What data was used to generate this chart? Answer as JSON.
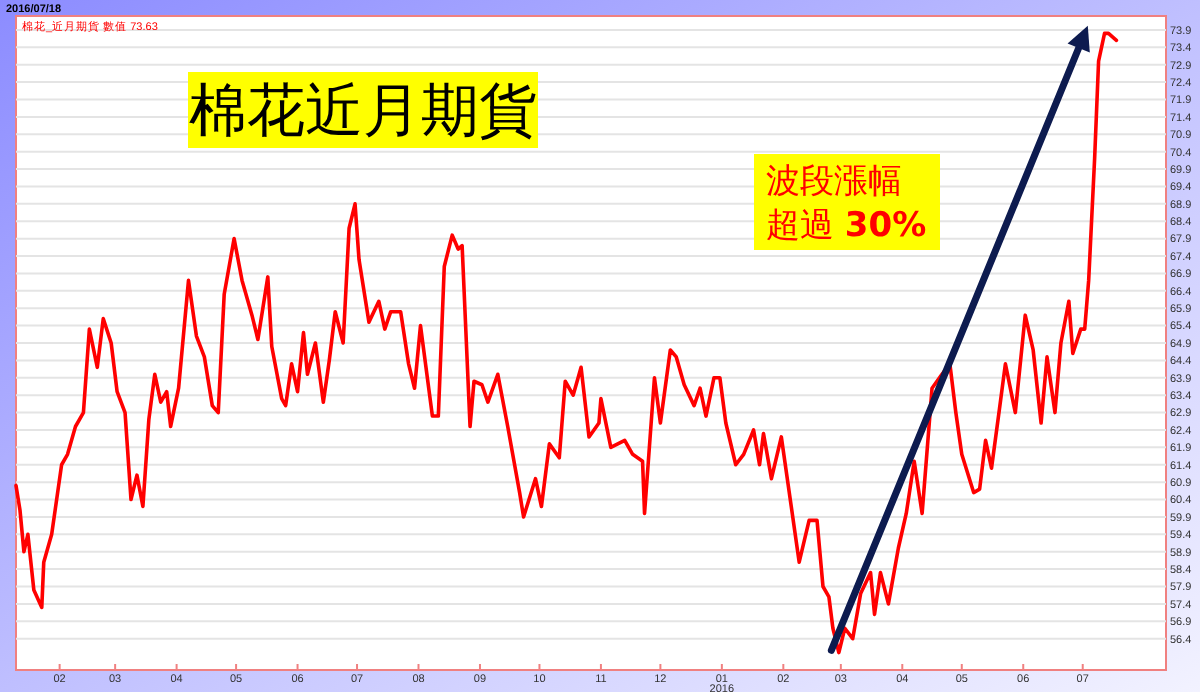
{
  "chart_data": {
    "type": "line",
    "title": "棉花近月期貨",
    "annotations": [
      "2016/07/18",
      "數值 73.63",
      "波段漲幅",
      "超過 30%",
      "2016"
    ],
    "xlim": [
      "2015-01-10",
      "2016-08-12"
    ],
    "xticks": [
      {
        "value": "2015-02-01",
        "label": "02"
      },
      {
        "value": "2015-03-01",
        "label": "03"
      },
      {
        "value": "2015-04-01",
        "label": "04"
      },
      {
        "value": "2015-05-01",
        "label": "05"
      },
      {
        "value": "2015-06-01",
        "label": "06"
      },
      {
        "value": "2015-07-01",
        "label": "07"
      },
      {
        "value": "2015-08-01",
        "label": "08"
      },
      {
        "value": "2015-09-01",
        "label": "09"
      },
      {
        "value": "2015-10-01",
        "label": "10"
      },
      {
        "value": "2015-11-01",
        "label": "11"
      },
      {
        "value": "2015-12-01",
        "label": "12"
      },
      {
        "value": "2016-01-01",
        "label": "01"
      },
      {
        "value": "2016-02-01",
        "label": "02"
      },
      {
        "value": "2016-03-01",
        "label": "03"
      },
      {
        "value": "2016-04-01",
        "label": "04"
      },
      {
        "value": "2016-05-01",
        "label": "05"
      },
      {
        "value": "2016-06-01",
        "label": "06"
      },
      {
        "value": "2016-07-01",
        "label": "07"
      }
    ],
    "ylim": [
      55.5,
      74.3
    ],
    "yticks": [
      56.4,
      56.9,
      57.4,
      57.9,
      58.4,
      58.9,
      59.4,
      59.9,
      60.4,
      60.9,
      61.4,
      61.9,
      62.4,
      62.9,
      63.4,
      63.9,
      64.4,
      64.9,
      65.4,
      65.9,
      66.4,
      66.9,
      67.4,
      67.9,
      68.4,
      68.9,
      69.4,
      69.9,
      70.4,
      70.9,
      71.4,
      71.9,
      72.4,
      72.9,
      73.4,
      73.9
    ],
    "grid": "y",
    "legend": "top left",
    "marker": "none",
    "line_style": "solid",
    "series": [
      {
        "name": "棉花_近月期貨",
        "color": "#ff0000",
        "x": [
          "2015-01-10",
          "2015-01-12",
          "2015-01-14",
          "2015-01-16",
          "2015-01-19",
          "2015-01-23",
          "2015-01-24",
          "2015-01-28",
          "2015-02-02",
          "2015-02-05",
          "2015-02-09",
          "2015-02-13",
          "2015-02-16",
          "2015-02-20",
          "2015-02-23",
          "2015-02-27",
          "2015-03-02",
          "2015-03-06",
          "2015-03-09",
          "2015-03-12",
          "2015-03-15",
          "2015-03-18",
          "2015-03-21",
          "2015-03-24",
          "2015-03-27",
          "2015-03-29",
          "2015-04-02",
          "2015-04-07",
          "2015-04-11",
          "2015-04-15",
          "2015-04-19",
          "2015-04-22",
          "2015-04-25",
          "2015-04-30",
          "2015-05-04",
          "2015-05-09",
          "2015-05-12",
          "2015-05-17",
          "2015-05-19",
          "2015-05-24",
          "2015-05-26",
          "2015-05-29",
          "2015-06-01",
          "2015-06-04",
          "2015-06-06",
          "2015-06-10",
          "2015-06-14",
          "2015-06-17",
          "2015-06-20",
          "2015-06-24",
          "2015-06-27",
          "2015-06-30",
          "2015-07-02",
          "2015-07-07",
          "2015-07-12",
          "2015-07-15",
          "2015-07-18",
          "2015-07-23",
          "2015-07-27",
          "2015-07-30",
          "2015-08-02",
          "2015-08-08",
          "2015-08-11",
          "2015-08-14",
          "2015-08-18",
          "2015-08-21",
          "2015-08-23",
          "2015-08-27",
          "2015-08-29",
          "2015-09-02",
          "2015-09-05",
          "2015-09-10",
          "2015-09-15",
          "2015-09-21",
          "2015-09-23",
          "2015-09-29",
          "2015-10-02",
          "2015-10-06",
          "2015-10-11",
          "2015-10-14",
          "2015-10-18",
          "2015-10-22",
          "2015-10-26",
          "2015-10-31",
          "2015-11-01",
          "2015-11-06",
          "2015-11-13",
          "2015-11-17",
          "2015-11-22",
          "2015-11-23",
          "2015-11-28",
          "2015-12-01",
          "2015-12-06",
          "2015-12-09",
          "2015-12-13",
          "2015-12-18",
          "2015-12-21",
          "2015-12-24",
          "2015-12-28",
          "2015-12-31",
          "2016-01-03",
          "2016-01-08",
          "2016-01-12",
          "2016-01-17",
          "2016-01-20",
          "2016-01-22",
          "2016-01-26",
          "2016-01-31",
          "2016-02-05",
          "2016-02-09",
          "2016-02-14",
          "2016-02-18",
          "2016-02-21",
          "2016-02-24",
          "2016-02-26",
          "2016-02-29",
          "2016-03-03",
          "2016-03-07",
          "2016-03-11",
          "2016-03-16",
          "2016-03-18",
          "2016-03-21",
          "2016-03-25",
          "2016-03-30",
          "2016-04-03",
          "2016-04-07",
          "2016-04-11",
          "2016-04-16",
          "2016-04-21",
          "2016-04-25",
          "2016-04-28",
          "2016-05-01",
          "2016-05-07",
          "2016-05-10",
          "2016-05-13",
          "2016-05-16",
          "2016-05-20",
          "2016-05-23",
          "2016-05-28",
          "2016-06-02",
          "2016-06-06",
          "2016-06-10",
          "2016-06-13",
          "2016-06-17",
          "2016-06-20",
          "2016-06-24",
          "2016-06-26",
          "2016-06-30",
          "2016-07-02",
          "2016-07-04",
          "2016-07-07",
          "2016-07-09",
          "2016-07-12",
          "2016-07-14",
          "2016-07-18"
        ],
        "values": [
          60.8,
          60.1,
          58.9,
          59.4,
          57.8,
          57.3,
          58.6,
          59.4,
          61.4,
          61.7,
          62.5,
          62.9,
          65.3,
          64.2,
          65.6,
          64.9,
          63.5,
          62.9,
          60.4,
          61.1,
          60.2,
          62.7,
          64.0,
          63.2,
          63.5,
          62.5,
          63.6,
          66.7,
          65.1,
          64.5,
          63.1,
          62.9,
          66.3,
          67.9,
          66.7,
          65.7,
          65.0,
          66.8,
          64.8,
          63.3,
          63.1,
          64.3,
          63.5,
          65.2,
          64.0,
          64.9,
          63.2,
          64.4,
          65.8,
          64.9,
          68.2,
          68.9,
          67.3,
          65.5,
          66.1,
          65.3,
          65.8,
          65.8,
          64.3,
          63.6,
          65.4,
          62.8,
          62.8,
          67.1,
          68.0,
          67.6,
          67.7,
          62.5,
          63.8,
          63.7,
          63.2,
          64.0,
          62.5,
          60.6,
          59.9,
          61.0,
          60.2,
          62.0,
          61.6,
          63.8,
          63.4,
          64.2,
          62.2,
          62.6,
          63.3,
          61.9,
          62.1,
          61.7,
          61.5,
          60.0,
          63.9,
          62.6,
          64.7,
          64.5,
          63.7,
          63.1,
          63.6,
          62.8,
          63.9,
          63.9,
          62.6,
          61.4,
          61.7,
          62.4,
          61.4,
          62.3,
          61.0,
          62.2,
          60.2,
          58.6,
          59.8,
          59.8,
          57.9,
          57.6,
          56.7,
          56.0,
          56.7,
          56.4,
          57.7,
          58.3,
          57.1,
          58.3,
          57.4,
          59.0,
          60.0,
          61.5,
          60.0,
          63.6,
          64.0,
          64.3,
          62.9,
          61.7,
          60.6,
          60.7,
          62.1,
          61.3,
          63.0,
          64.3,
          62.9,
          65.7,
          64.7,
          62.6,
          64.5,
          62.9,
          64.9,
          66.1,
          64.6,
          65.3,
          65.3,
          66.7,
          70.2,
          73.0,
          73.8,
          73.8,
          73.6
        ]
      }
    ]
  }
}
